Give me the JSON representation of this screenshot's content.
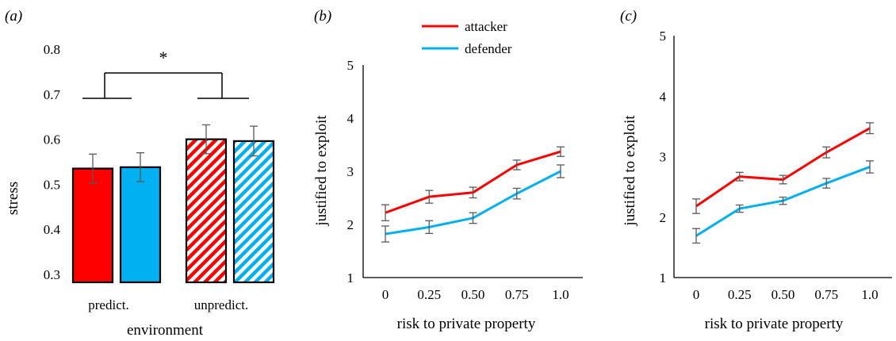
{
  "chart_data": [
    {
      "panel": "(a)",
      "type": "bar",
      "xlabel": "environment",
      "ylabel": "stress",
      "ylim": [
        0.3,
        0.8
      ],
      "yticks": [
        "0.3",
        "0.4",
        "0.5",
        "0.6",
        "0.7",
        "0.8"
      ],
      "grid": false,
      "group_labels": [
        "predict.",
        "unpredict."
      ],
      "significance": "*",
      "bars": [
        {
          "group": "predict.",
          "color": "#ff0000",
          "hatched": false,
          "value": 0.535,
          "error": 0.032
        },
        {
          "group": "predict.",
          "color": "#00b0f0",
          "hatched": false,
          "value": 0.538,
          "error": 0.032
        },
        {
          "group": "unpredict.",
          "color": "#ff0000",
          "hatched": true,
          "value": 0.6,
          "error": 0.032
        },
        {
          "group": "unpredict.",
          "color": "#00b0f0",
          "hatched": true,
          "value": 0.596,
          "error": 0.033
        }
      ]
    },
    {
      "panel": "(b)",
      "type": "line",
      "xlabel": "risk to private property",
      "ylabel": "justified to exploit",
      "ylim": [
        1,
        5
      ],
      "yticks": [
        "1",
        "2",
        "3",
        "4",
        "5"
      ],
      "x": [
        "0",
        "0.25",
        "0.50",
        "0.75",
        "1.0"
      ],
      "grid": false,
      "legend_position": "top",
      "series": [
        {
          "name": "attacker",
          "color": "#ff0000",
          "values": [
            2.22,
            2.52,
            2.6,
            3.12,
            3.37
          ],
          "errors": [
            0.15,
            0.12,
            0.1,
            0.09,
            0.09
          ]
        },
        {
          "name": "defender",
          "color": "#00b0f0",
          "values": [
            1.82,
            1.95,
            2.12,
            2.58,
            3.0
          ],
          "errors": [
            0.15,
            0.12,
            0.1,
            0.1,
            0.12
          ]
        }
      ]
    },
    {
      "panel": "(c)",
      "type": "line",
      "xlabel": "risk to private property",
      "ylabel": "justified to exploit",
      "ylim": [
        1,
        5
      ],
      "yticks": [
        "1",
        "2",
        "3",
        "4",
        "5"
      ],
      "x": [
        "0",
        "0.25",
        "0.50",
        "0.75",
        "1.0"
      ],
      "grid": false,
      "series": [
        {
          "color": "#ff0000",
          "values": [
            2.18,
            2.67,
            2.62,
            3.07,
            3.47
          ],
          "errors": [
            0.12,
            0.07,
            0.07,
            0.09,
            0.09
          ]
        },
        {
          "color": "#00b0f0",
          "values": [
            1.69,
            2.14,
            2.27,
            2.56,
            2.83
          ],
          "errors": [
            0.12,
            0.06,
            0.06,
            0.08,
            0.1
          ]
        }
      ]
    }
  ]
}
